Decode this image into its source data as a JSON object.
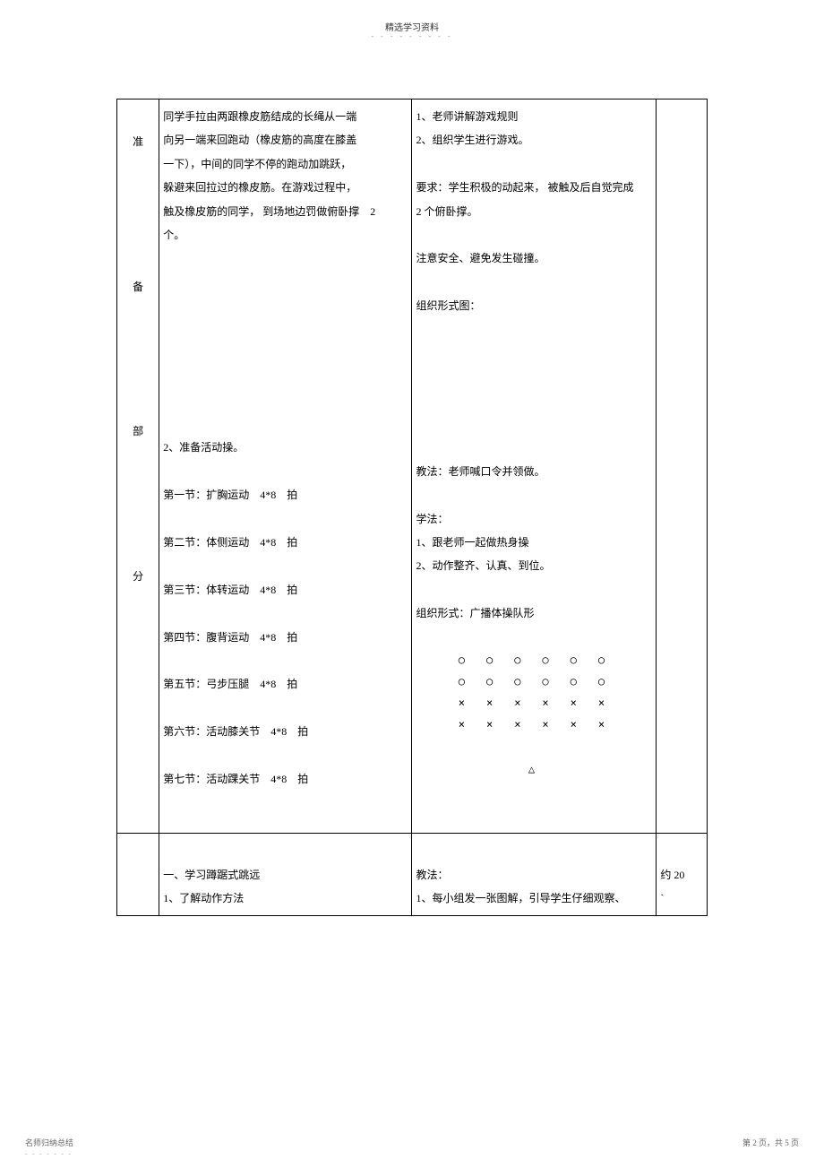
{
  "header": {
    "title": "精选学习资料",
    "dots": "- - - - - - - - -"
  },
  "row1": {
    "phase_chars": [
      "准",
      "备",
      "部",
      "分"
    ],
    "content_lines": [
      "同学手拉由两跟橡皮筋结成的长绳从一端",
      "向另一端来回跑动（橡皮筋的高度在膝盖",
      "一下），中间的同学不停的跑动加跳跃，",
      "躲避来回拉过的橡皮筋。在游戏过程中，",
      "触及橡皮筋的同学， 到场地边罚做俯卧撑　2",
      "个。"
    ],
    "prep_title": "2、准备活动操。",
    "exercises": [
      "第一节：扩胸运动　4*8　拍",
      "第二节：体侧运动　4*8　拍",
      "第三节：体转运动　4*8　拍",
      "第四节：腹背运动　4*8　拍",
      "第五节：弓步压腿　4*8　拍",
      "第六节：活动膝关节　4*8　拍",
      "第七节：活动踝关节　4*8　拍"
    ],
    "method_lines": [
      "1、老师讲解游戏规则",
      "2、组织学生进行游戏。"
    ],
    "method_req": "要求：学生积极的动起来， 被触及后自觉完成",
    "method_req2": "2 个俯卧撑。",
    "method_safety": "注意安全、避免发生碰撞。",
    "method_org": "组织形式图：",
    "method_teach": "教法：老师喊口令并领做。",
    "method_learn_title": "学法：",
    "method_learn": [
      "1、跟老师一起做热身操",
      "2、动作整齐、认真、到位。"
    ],
    "method_form_title": "组织形式：广播体操队形",
    "formation_rows": [
      "○　○　○　○　○　○",
      "○　○　○　○　○　○",
      "×　×　×　×　×　×",
      "×　×　×　×　×　×"
    ],
    "formation_teacher": "△"
  },
  "row2": {
    "content_lines": [
      "一、学习蹲踞式跳远",
      "1、了解动作方法"
    ],
    "method_title": "教法：",
    "method_line": "1、每小组发一张图解，引导学生仔细观察、",
    "time": "约 20",
    "time_mark": "`"
  },
  "footer": {
    "left": "名师归纳总结",
    "left_dots": "- - - - - - -",
    "right": "第 2 页，共 5 页"
  }
}
